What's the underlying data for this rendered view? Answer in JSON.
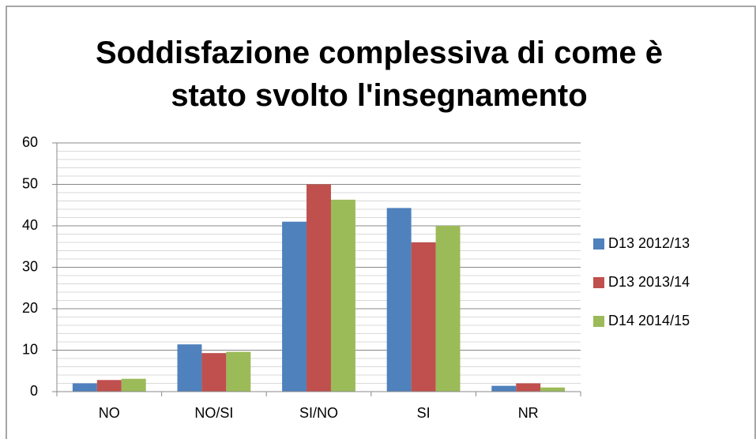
{
  "chart_data": {
    "type": "bar",
    "title": "Soddisfazione complessiva di come è stato svolto l'insegnamento",
    "categories": [
      "NO",
      "NO/SI",
      "SI/NO",
      "SI",
      "NR"
    ],
    "series": [
      {
        "name": "D13 2012/13",
        "color": "#4f81bd",
        "values": [
          2,
          11.4,
          41,
          44.3,
          1.4
        ]
      },
      {
        "name": "D13 2013/14",
        "color": "#c0504d",
        "values": [
          2.8,
          9.3,
          50,
          36,
          2
        ]
      },
      {
        "name": "D14 2014/15",
        "color": "#9bbb59",
        "values": [
          3.1,
          9.6,
          46.3,
          40,
          1
        ]
      }
    ],
    "ylim": [
      0,
      60
    ],
    "yticks": [
      0,
      10,
      20,
      30,
      40,
      50,
      60
    ],
    "grid": true,
    "legend": "right"
  }
}
